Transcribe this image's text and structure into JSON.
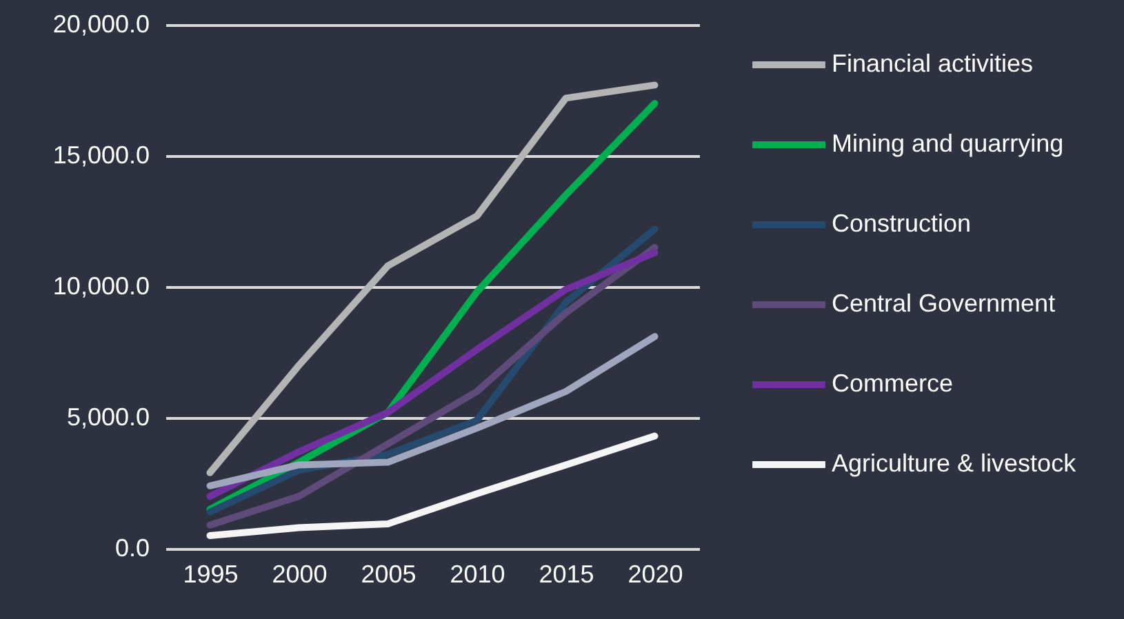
{
  "chart_data": {
    "type": "line",
    "categories": [
      "1995",
      "2000",
      "2005",
      "2010",
      "2015",
      "2020"
    ],
    "series": [
      {
        "name": "Financial activities",
        "color": "#b4b4b4",
        "values": [
          2900,
          7000,
          10800,
          12700,
          17200,
          17700
        ]
      },
      {
        "name": "Mining and quarrying",
        "color": "#00b050",
        "values": [
          1500,
          3300,
          5200,
          9800,
          13500,
          17000
        ]
      },
      {
        "name": "Construction",
        "color": "#264a6e",
        "values": [
          1400,
          3000,
          3600,
          4900,
          9400,
          12200
        ]
      },
      {
        "name": "Central Government",
        "color": "#5e4b7a",
        "values": [
          900,
          2000,
          4000,
          6000,
          9000,
          11500
        ]
      },
      {
        "name": "Commerce",
        "color": "#7030a0",
        "values": [
          2000,
          3700,
          5200,
          7600,
          9900,
          11300
        ]
      },
      {
        "color": "#a0a6bd",
        "values": [
          2400,
          3200,
          3300,
          4600,
          6000,
          8100
        ]
      },
      {
        "name": "Agriculture & livestock",
        "color": "#f5f5f5",
        "values": [
          500,
          800,
          950,
          2100,
          3200,
          4300
        ]
      }
    ],
    "ylim": [
      0,
      20000
    ],
    "yticks": [
      {
        "value": 0,
        "label": "0.0"
      },
      {
        "value": 5000,
        "label": "5,000.0"
      },
      {
        "value": 10000,
        "label": "10,000.0"
      },
      {
        "value": 15000,
        "label": "15,000.0"
      },
      {
        "value": 20000,
        "label": "20,000.0"
      }
    ],
    "grid": "y",
    "legend": "right",
    "marker": "none",
    "line_style": "solid"
  }
}
